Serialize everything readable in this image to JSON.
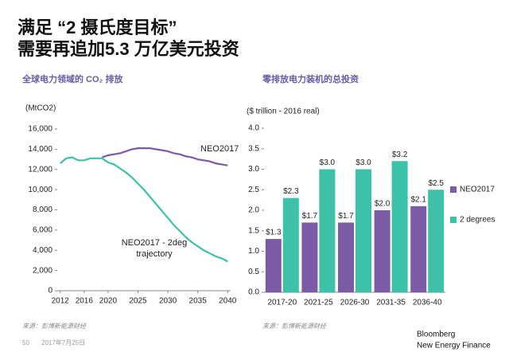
{
  "header": {
    "title_lines": [
      "满足 “2 摄氏度目标”",
      "需要再追加5.3 万亿美元投资"
    ]
  },
  "chart_data": [
    {
      "type": "line",
      "title": "全球电力领域的 CO₂ 排放",
      "ylabel": "(MtCO2)",
      "x": [
        2012,
        2013,
        2014,
        2015,
        2016,
        2017,
        2018,
        2019,
        2020,
        2021,
        2022,
        2023,
        2024,
        2025,
        2026,
        2027,
        2028,
        2029,
        2030,
        2031,
        2032,
        2033,
        2034,
        2035,
        2036,
        2037,
        2038,
        2039,
        2040
      ],
      "series": [
        {
          "name": "NEO2017",
          "color": "#7b5ba6",
          "values": [
            null,
            null,
            null,
            null,
            null,
            null,
            null,
            13200,
            13400,
            13500,
            13600,
            13800,
            14000,
            14100,
            14100,
            14100,
            14000,
            13900,
            13800,
            13600,
            13500,
            13300,
            13200,
            13000,
            12900,
            12800,
            12600,
            12500,
            12400
          ]
        },
        {
          "name": "NEO2017 - 2deg trajectory",
          "color": "#3ec1a9",
          "values": [
            12600,
            13100,
            13200,
            12900,
            12900,
            13100,
            13100,
            13100,
            12700,
            12500,
            12100,
            11700,
            11200,
            10600,
            10000,
            9300,
            8600,
            7900,
            7200,
            6500,
            5900,
            5300,
            4800,
            4400,
            4000,
            3700,
            3400,
            3200,
            2900
          ]
        }
      ],
      "xlim": [
        2011.5,
        2040.5
      ],
      "xticks": [
        2012,
        2016,
        2020,
        2025,
        2030,
        2035,
        2040
      ],
      "ylim": [
        0,
        16000
      ],
      "yticks": [
        0,
        {
          "value": 2000,
          "label": "2,000"
        },
        {
          "value": 4000,
          "label": "4,000"
        },
        {
          "value": 6000,
          "label": "6,000"
        },
        {
          "value": 8000,
          "label": "8,000"
        },
        {
          "value": 10000,
          "label": "10,000"
        },
        {
          "value": 12000,
          "label": "12,000"
        },
        {
          "value": 14000,
          "label": "14,000"
        },
        {
          "value": 16000,
          "label": "16,000"
        }
      ]
    },
    {
      "type": "bar",
      "title": "零排放电力装机的总投资",
      "ylabel": "($ trillion - 2016 real)",
      "categories": [
        "2017-20",
        "2021-25",
        "2026-30",
        "2031-35",
        "2036-40"
      ],
      "series": [
        {
          "name": "NEO2017",
          "color": "#7b5ba6",
          "values": [
            1.3,
            1.7,
            1.7,
            2.0,
            2.1
          ],
          "value_labels": [
            "$1.3",
            "$1.7",
            "$1.7",
            "$2.0",
            "$2.1"
          ]
        },
        {
          "name": "2 degrees",
          "color": "#3ec1a9",
          "values": [
            2.3,
            3.0,
            3.0,
            3.2,
            2.5
          ],
          "value_labels": [
            "$2.3",
            "$3.0",
            "$3.0",
            "$3.2",
            "$2.5"
          ]
        }
      ],
      "ylim": [
        0,
        4
      ],
      "yticks": [
        {
          "value": 0,
          "label": "0.0"
        },
        0.5,
        {
          "value": 1,
          "label": "1.0"
        },
        1.5,
        {
          "value": 2,
          "label": "2.0"
        },
        2.5,
        {
          "value": 3,
          "label": "3.0"
        },
        3.5,
        {
          "value": 4,
          "label": "4.0"
        }
      ]
    }
  ],
  "source_notes": [
    "来源：彭博新能源财经",
    "来源：彭博新能源财经"
  ],
  "footer": {
    "page": "50",
    "date": "2017年7月25日",
    "brand_lines": [
      "Bloomberg",
      "New Energy Finance"
    ]
  }
}
